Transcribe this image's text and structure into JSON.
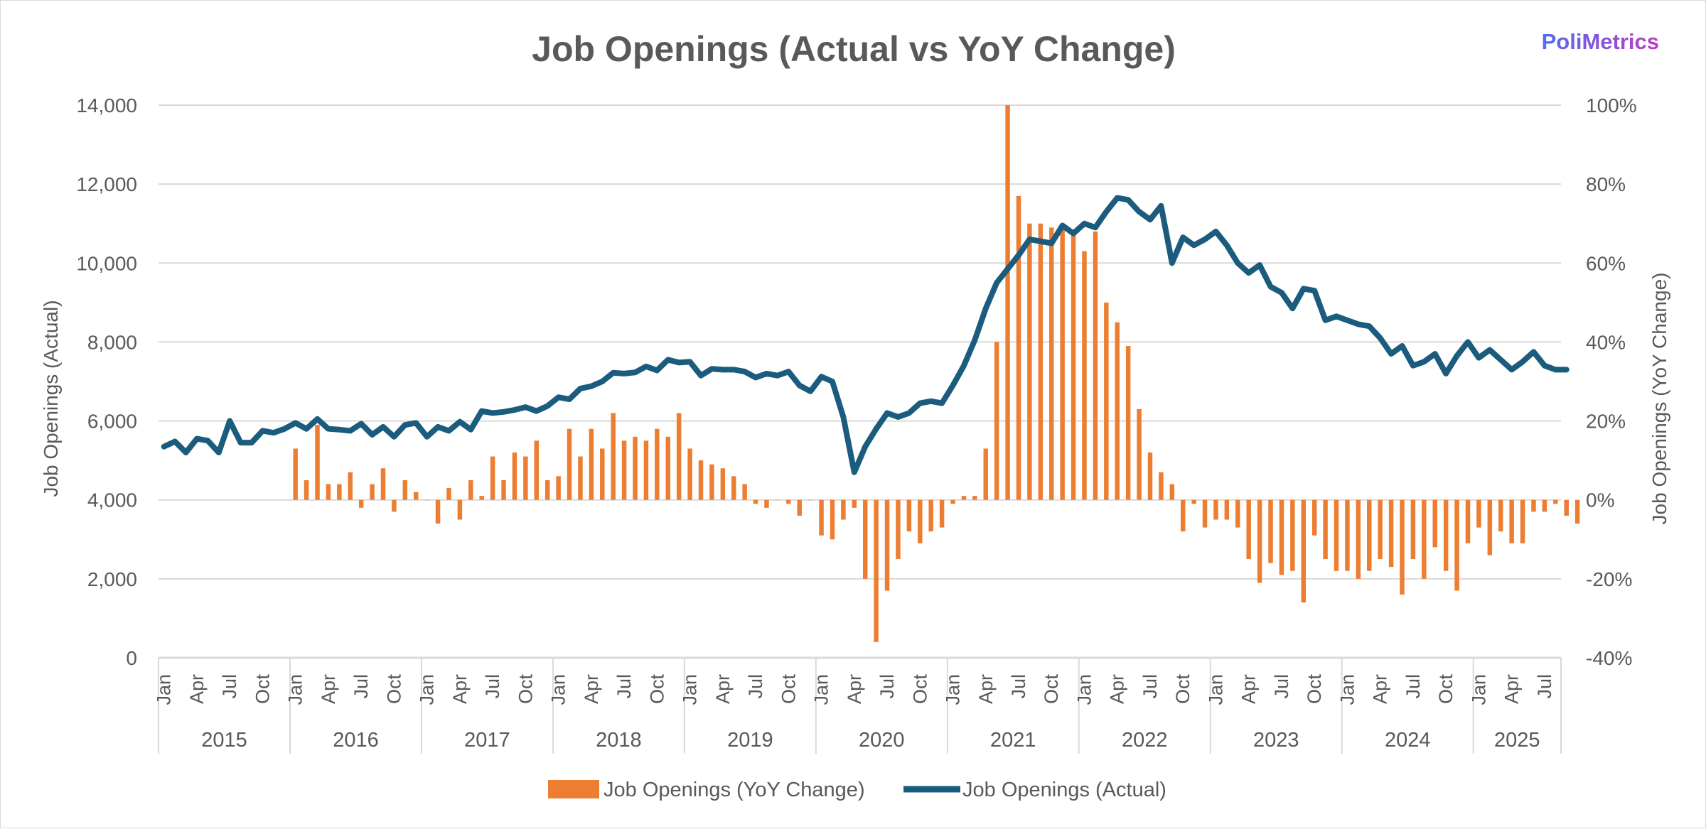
{
  "colors": {
    "bar": "#ED7D31",
    "line": "#1B5C7E",
    "grid": "#D9D9D9",
    "text": "#595959",
    "brand_start": "#4F6DF5",
    "brand_end": "#C03BC4"
  },
  "brand": "PoliMetrics",
  "chart_data": {
    "type": "bar+line",
    "title": "Job Openings (Actual vs YoY Change)",
    "y_left": {
      "label": "Job Openings (Actual)",
      "min": 0,
      "max": 14000,
      "ticks": [
        "0",
        "2,000",
        "4,000",
        "6,000",
        "8,000",
        "10,000",
        "12,000",
        "14,000"
      ]
    },
    "y_right": {
      "label": "Job Openings (YoY Change)",
      "min": -40,
      "max": 100,
      "ticks": [
        "-40%",
        "-20%",
        "0%",
        "20%",
        "40%",
        "60%",
        "80%",
        "100%"
      ]
    },
    "years": [
      "2015",
      "2016",
      "2017",
      "2018",
      "2019",
      "2020",
      "2021",
      "2022",
      "2023",
      "2024",
      "2025"
    ],
    "month_labels": [
      "Jan",
      "Apr",
      "Jul",
      "Oct"
    ],
    "months_total": 128,
    "gridlines": true,
    "legend_position": "bottom",
    "series": [
      {
        "name": "Job Openings (YoY Change)",
        "kind": "bar",
        "axis": "right",
        "start": "2016-01",
        "values": [
          13,
          5,
          19,
          4,
          4,
          7,
          -2,
          4,
          8,
          -3,
          5,
          2,
          0,
          -6,
          3,
          -5,
          5,
          1,
          11,
          5,
          12,
          11,
          15,
          5,
          6,
          18,
          11,
          18,
          13,
          22,
          15,
          16,
          15,
          18,
          16,
          22,
          13,
          10,
          9,
          8,
          6,
          4,
          -1,
          -2,
          0,
          -1,
          -4,
          0,
          -9,
          -10,
          -5,
          -2,
          -20,
          -36,
          -23,
          -15,
          -8,
          -11,
          -8,
          -7,
          -1,
          1,
          1,
          13,
          40,
          100,
          77,
          70,
          70,
          69,
          69,
          67,
          63,
          68,
          50,
          45,
          39,
          23,
          12,
          7,
          4,
          -8,
          -1,
          -7,
          -5,
          -5,
          -7,
          -15,
          -21,
          -16,
          -19,
          -18,
          -26,
          -9,
          -15,
          -18,
          -18,
          -20,
          -18,
          -15,
          -17,
          -24,
          -15,
          -20,
          -12,
          -18,
          -23,
          -11,
          -7,
          -14,
          -8,
          -11,
          -11,
          -3,
          -3,
          -1,
          -4,
          -6
        ]
      },
      {
        "name": "Job Openings (Actual)",
        "kind": "line",
        "axis": "left",
        "start": "2015-01",
        "values": [
          5350,
          5480,
          5200,
          5550,
          5500,
          5200,
          6000,
          5450,
          5450,
          5750,
          5700,
          5800,
          5950,
          5800,
          6050,
          5800,
          5780,
          5750,
          5930,
          5650,
          5850,
          5600,
          5900,
          5950,
          5600,
          5850,
          5750,
          5980,
          5780,
          6250,
          6200,
          6230,
          6280,
          6350,
          6250,
          6380,
          6600,
          6550,
          6820,
          6880,
          7000,
          7220,
          7200,
          7230,
          7380,
          7280,
          7550,
          7480,
          7500,
          7150,
          7320,
          7300,
          7300,
          7250,
          7100,
          7200,
          7150,
          7250,
          6900,
          6750,
          7120,
          7000,
          6100,
          4700,
          5350,
          5800,
          6200,
          6100,
          6200,
          6450,
          6500,
          6450,
          6900,
          7400,
          8050,
          8850,
          9500,
          9850,
          10200,
          10600,
          10550,
          10500,
          10950,
          10750,
          11000,
          10900,
          11300,
          11650,
          11600,
          11300,
          11100,
          11450,
          10000,
          10650,
          10450,
          10600,
          10800,
          10450,
          10000,
          9750,
          9950,
          9400,
          9250,
          8850,
          9350,
          9300,
          8550,
          8650,
          8550,
          8450,
          8400,
          8100,
          7700,
          7900,
          7400,
          7500,
          7700,
          7200,
          7650,
          8000,
          7600,
          7800,
          7550,
          7300,
          7500,
          7750,
          7400,
          7300,
          7300
        ]
      }
    ]
  }
}
